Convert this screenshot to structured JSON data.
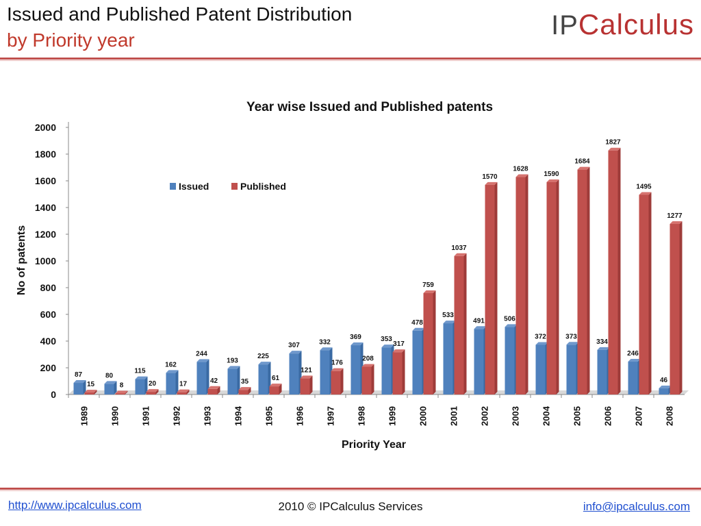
{
  "header": {
    "title": "Issued and Published Patent Distribution",
    "subtitle": "by Priority year",
    "logo_ip": "IP",
    "logo_rest": "Calculus"
  },
  "footer": {
    "url": "http://www.ipcalculus.com",
    "copyright": "2010 © IPCalculus Services",
    "email": "info@ipcalculus.com"
  },
  "chart_data": {
    "type": "bar",
    "title": "Year wise Issued and Published patents",
    "xlabel": "Priority Year",
    "ylabel": "No of patents",
    "ylim": [
      0,
      2000
    ],
    "yticks": [
      0,
      200,
      400,
      600,
      800,
      1000,
      1200,
      1400,
      1600,
      1800,
      2000
    ],
    "legend_position": "top-left",
    "grid": false,
    "categories": [
      "1989",
      "1990",
      "1991",
      "1992",
      "1993",
      "1994",
      "1995",
      "1996",
      "1997",
      "1998",
      "1999",
      "2000",
      "2001",
      "2002",
      "2003",
      "2004",
      "2005",
      "2006",
      "2007",
      "2008"
    ],
    "series": [
      {
        "name": "Issued",
        "color": "#4f81bd",
        "values": [
          87,
          80,
          115,
          162,
          244,
          193,
          225,
          307,
          332,
          369,
          353,
          478,
          533,
          491,
          506,
          372,
          373,
          334,
          246,
          46
        ]
      },
      {
        "name": "Published",
        "color": "#c0504d",
        "values": [
          15,
          8,
          20,
          17,
          42,
          35,
          61,
          121,
          176,
          208,
          317,
          759,
          1037,
          1570,
          1628,
          1590,
          1684,
          1827,
          1495,
          1277
        ]
      }
    ]
  }
}
